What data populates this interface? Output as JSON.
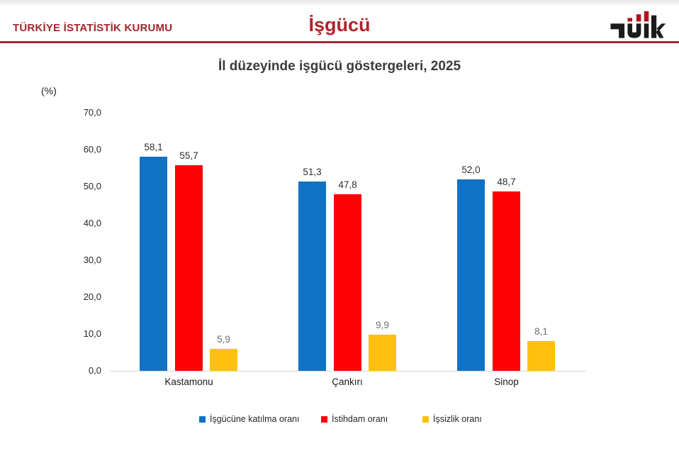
{
  "header": {
    "org_name": "TÜRKİYE İSTATİSTİK KURUMU",
    "page_title": "İşgücü",
    "logo_name": "TÜİK"
  },
  "colors": {
    "brand_red": "#A3262C",
    "brand_red_bright": "#B2232A",
    "series_blue": "#1072C4",
    "series_red": "#FC0204",
    "series_yellow": "#FFC10D"
  },
  "chart_data": {
    "type": "bar",
    "title": "İl düzeyinde işgücü göstergeleri, 2025",
    "unit_label": "(%)",
    "categories": [
      "Kastamonu",
      "Çankırı",
      "Sinop"
    ],
    "series": [
      {
        "name": "İşgücüne katılma oranı",
        "color": "#1072C4",
        "values": [
          58.1,
          51.3,
          52.0
        ],
        "labels": [
          "58,1",
          "51,3",
          "52,0"
        ]
      },
      {
        "name": "İstihdam oranı",
        "color": "#FC0204",
        "values": [
          55.7,
          47.8,
          48.7
        ],
        "labels": [
          "55,7",
          "47,8",
          "48,7"
        ]
      },
      {
        "name": "İşsizlik oranı",
        "color": "#FFC10D",
        "values": [
          5.9,
          9.9,
          8.1
        ],
        "labels": [
          "5,9",
          "9,9",
          "8,1"
        ]
      }
    ],
    "y_ticks": [
      "0,0",
      "10,0",
      "20,0",
      "30,0",
      "40,0",
      "50,0",
      "60,0",
      "70,0"
    ],
    "ylim": [
      0,
      70
    ],
    "grid": false,
    "legend_position": "bottom"
  }
}
